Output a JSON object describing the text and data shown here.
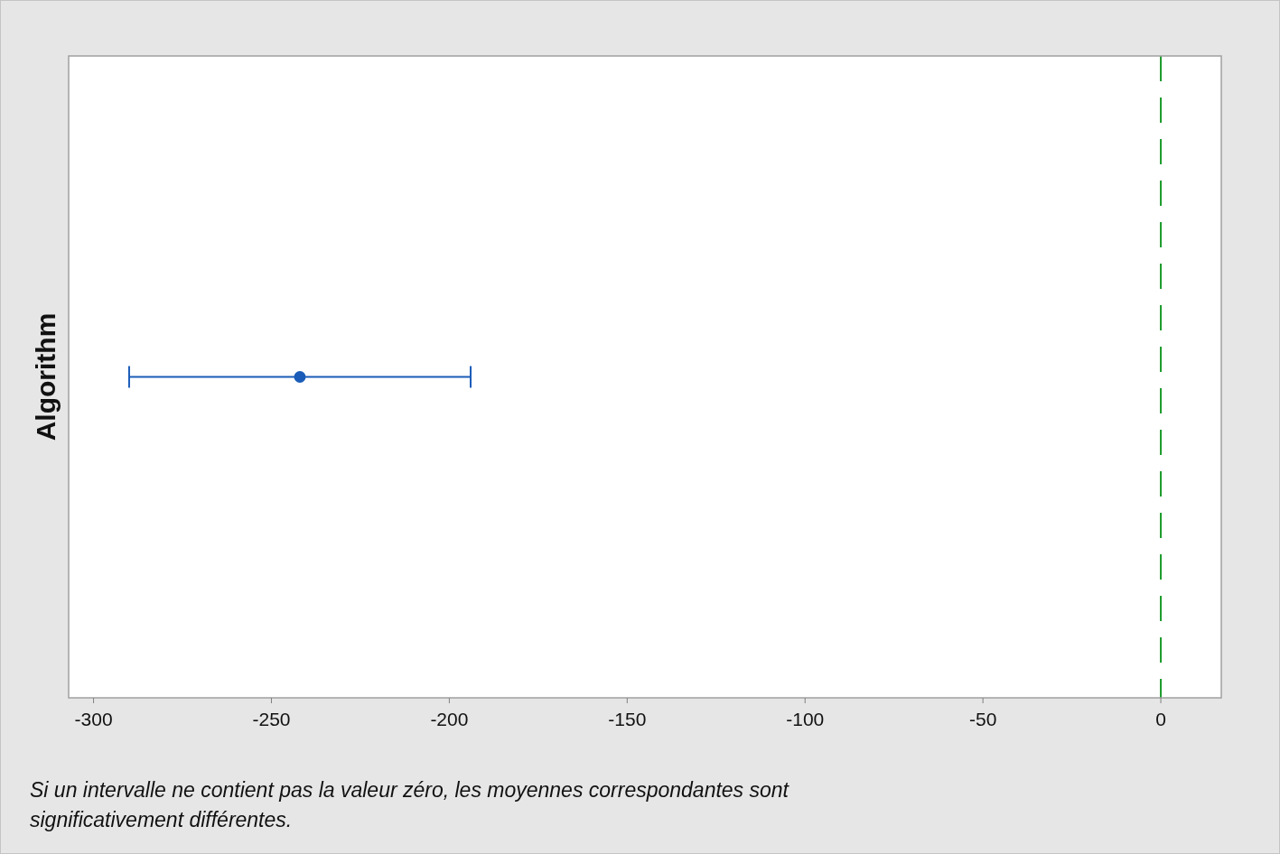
{
  "chart_data": {
    "type": "scatter",
    "orientation": "horizontal",
    "ylabel": "Algorithm",
    "categories": [
      null
    ],
    "values": [
      -242
    ],
    "errors": [
      48
    ],
    "color": "#1a5cb8",
    "marker": "circle",
    "xlim": [
      -307,
      17
    ],
    "xticks": [
      -300,
      -250,
      -200,
      -150,
      -100,
      -50,
      0
    ],
    "ref_lines": [
      {
        "axis": "x",
        "value": 0,
        "color": "#1a9a2a",
        "line_style": "dashed"
      }
    ],
    "annotations": [
      "Si un intervalle ne contient pas la valeur zéro, les moyennes correspondantes sont significativement différentes."
    ]
  }
}
